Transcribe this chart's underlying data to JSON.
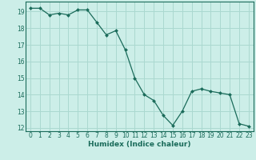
{
  "x": [
    0,
    1,
    2,
    3,
    4,
    5,
    6,
    7,
    8,
    9,
    10,
    11,
    12,
    13,
    14,
    15,
    16,
    17,
    18,
    19,
    20,
    21,
    22,
    23
  ],
  "y": [
    19.2,
    19.2,
    18.8,
    18.9,
    18.8,
    19.1,
    19.1,
    18.35,
    17.6,
    17.85,
    16.7,
    15.0,
    14.0,
    13.65,
    12.75,
    12.15,
    13.0,
    14.2,
    14.35,
    14.2,
    14.1,
    14.0,
    12.25,
    12.1
  ],
  "line_color": "#1a6b5a",
  "marker": "D",
  "marker_size": 2.0,
  "bg_color": "#cceee8",
  "grid_color": "#aad8d0",
  "axis_color": "#1a6b5a",
  "xlabel": "Humidex (Indice chaleur)",
  "xlim": [
    -0.5,
    23.5
  ],
  "ylim": [
    11.8,
    19.6
  ],
  "yticks": [
    12,
    13,
    14,
    15,
    16,
    17,
    18,
    19
  ],
  "xticks": [
    0,
    1,
    2,
    3,
    4,
    5,
    6,
    7,
    8,
    9,
    10,
    11,
    12,
    13,
    14,
    15,
    16,
    17,
    18,
    19,
    20,
    21,
    22,
    23
  ],
  "tick_fontsize": 5.5,
  "xlabel_fontsize": 6.5,
  "linewidth": 0.9
}
